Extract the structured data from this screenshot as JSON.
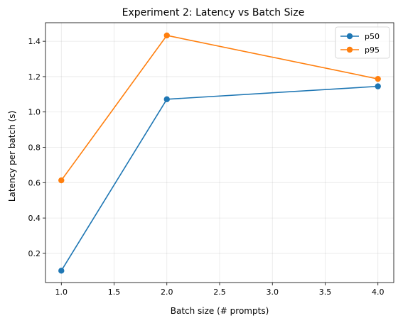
{
  "chart_data": {
    "type": "line",
    "title": "Experiment 2: Latency vs Batch Size",
    "xlabel": "Batch size (# prompts)",
    "ylabel": "Latency per batch (s)",
    "xlim": [
      0.85,
      4.15
    ],
    "ylim": [
      0.035,
      1.505
    ],
    "xticks": [
      1.0,
      1.5,
      2.0,
      2.5,
      3.0,
      3.5,
      4.0
    ],
    "xtick_labels": [
      "1.0",
      "1.5",
      "2.0",
      "2.5",
      "3.0",
      "3.5",
      "4.0"
    ],
    "yticks": [
      0.2,
      0.4,
      0.6,
      0.8,
      1.0,
      1.2,
      1.4
    ],
    "ytick_labels": [
      "0.2",
      "0.4",
      "0.6",
      "0.8",
      "1.0",
      "1.2",
      "1.4"
    ],
    "grid": true,
    "legend_position": "top-right",
    "x": [
      1,
      2,
      4
    ],
    "series": [
      {
        "name": "p50",
        "color": "#1f77b4",
        "values": [
          0.102,
          1.072,
          1.145
        ]
      },
      {
        "name": "p95",
        "color": "#ff7f0e",
        "values": [
          0.613,
          1.433,
          1.187
        ]
      }
    ]
  }
}
